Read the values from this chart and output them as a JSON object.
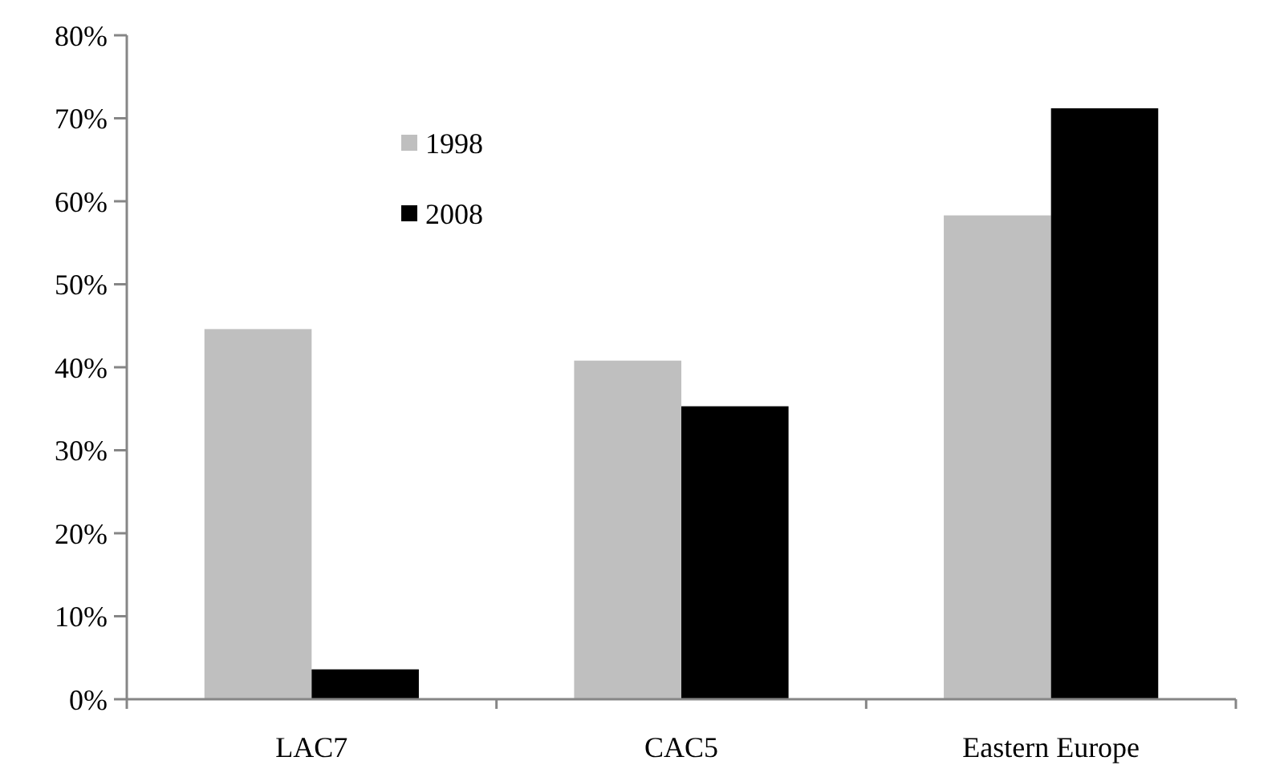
{
  "chart_data": {
    "type": "bar",
    "categories": [
      "LAC7",
      "CAC5",
      "Eastern Europe"
    ],
    "series": [
      {
        "name": "1998",
        "color": "#bfbfbf",
        "values": [
          44.6,
          40.8,
          58.3
        ]
      },
      {
        "name": "2008",
        "color": "#000000",
        "values": [
          3.6,
          35.3,
          71.2
        ]
      }
    ],
    "ylim": [
      0,
      80
    ],
    "yticks": [
      {
        "value": 0,
        "label": "0%"
      },
      {
        "value": 10,
        "label": "10%"
      },
      {
        "value": 20,
        "label": "20%"
      },
      {
        "value": 30,
        "label": "30%"
      },
      {
        "value": 40,
        "label": "40%"
      },
      {
        "value": 50,
        "label": "50%"
      },
      {
        "value": 60,
        "label": "60%"
      },
      {
        "value": 70,
        "label": "70%"
      },
      {
        "value": 80,
        "label": "80%"
      }
    ],
    "grid": false,
    "legend": "top"
  }
}
